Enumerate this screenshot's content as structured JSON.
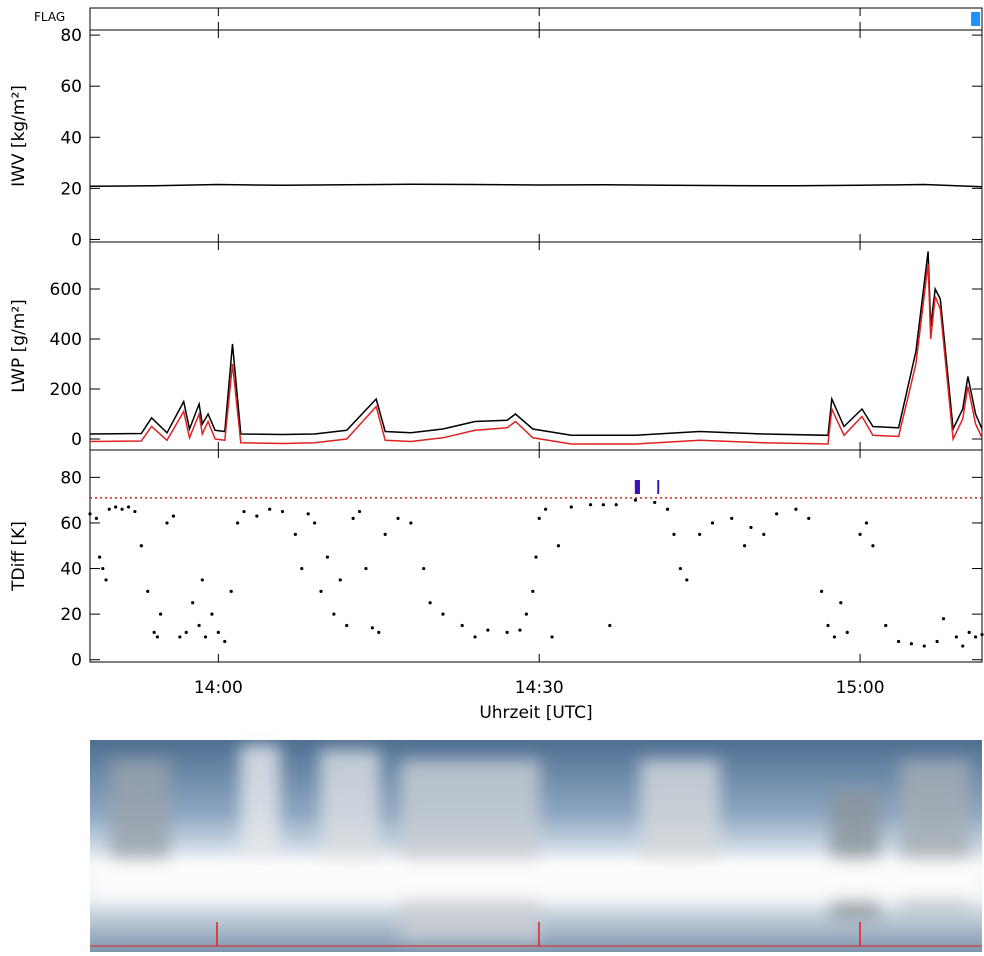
{
  "chart_data": [
    {
      "type": "flag",
      "label": "FLAG",
      "color": "#1e90ff",
      "xlim": [
        13.8,
        15.19
      ],
      "flags": [
        [
          15.173,
          15.187
        ]
      ]
    },
    {
      "type": "line",
      "ylabel": "IWV [kg/m²]",
      "xlim": [
        13.8,
        15.19
      ],
      "ylim": [
        -1,
        82
      ],
      "yticks": [
        0,
        20,
        40,
        60,
        80
      ],
      "x": [
        13.8,
        13.9,
        14.0,
        14.1,
        14.2,
        14.3,
        14.4,
        14.5,
        14.6,
        14.7,
        14.8,
        14.9,
        15.0,
        15.1,
        15.19
      ],
      "series": [
        {
          "color": "#000000",
          "values": [
            20.8,
            21.0,
            21.5,
            21.2,
            21.4,
            21.6,
            21.5,
            21.3,
            21.4,
            21.2,
            21.1,
            21.0,
            21.2,
            21.5,
            20.6
          ]
        }
      ]
    },
    {
      "type": "line",
      "ylabel": "LWP [g/m²]",
      "xlim": [
        13.8,
        15.19
      ],
      "ylim": [
        -44,
        788
      ],
      "yticks": [
        0,
        200,
        400,
        600
      ],
      "x": [
        13.8,
        13.88,
        13.896,
        13.92,
        13.946,
        13.955,
        13.97,
        13.975,
        13.984,
        13.995,
        14.01,
        14.022,
        14.035,
        14.1,
        14.15,
        14.2,
        14.246,
        14.26,
        14.3,
        14.35,
        14.4,
        14.45,
        14.463,
        14.49,
        14.55,
        14.65,
        14.75,
        14.85,
        14.95,
        14.956,
        14.975,
        15.003,
        15.02,
        15.06,
        15.087,
        15.106,
        15.11,
        15.117,
        15.125,
        15.135,
        15.145,
        15.16,
        15.168,
        15.18,
        15.19
      ],
      "series": [
        {
          "color": "#000000",
          "values": [
            20,
            22,
            85,
            25,
            150,
            40,
            140,
            60,
            100,
            35,
            30,
            380,
            20,
            18,
            20,
            35,
            160,
            30,
            25,
            40,
            70,
            75,
            100,
            40,
            15,
            15,
            30,
            20,
            15,
            160,
            50,
            120,
            50,
            45,
            350,
            750,
            450,
            600,
            560,
            300,
            40,
            120,
            250,
            100,
            40
          ]
        },
        {
          "color": "#dd2222",
          "values": [
            -10,
            -8,
            50,
            -5,
            110,
            5,
            100,
            20,
            70,
            0,
            -5,
            300,
            -15,
            -18,
            -15,
            0,
            130,
            -5,
            -10,
            5,
            35,
            45,
            70,
            5,
            -20,
            -20,
            -5,
            -15,
            -20,
            120,
            15,
            90,
            15,
            10,
            300,
            700,
            400,
            570,
            520,
            260,
            0,
            80,
            210,
            60,
            5
          ]
        }
      ]
    },
    {
      "type": "scatter",
      "ylabel": "TDiff [K]",
      "xlabel": "Uhrzeit [UTC]",
      "xlim": [
        13.8,
        15.19
      ],
      "ylim": [
        -1,
        92
      ],
      "yticks": [
        0,
        20,
        40,
        60,
        80
      ],
      "xticks": [
        {
          "value": 14.0,
          "label": "14:00"
        },
        {
          "value": 14.5,
          "label": "14:30"
        },
        {
          "value": 15.0,
          "label": "15:00"
        }
      ],
      "threshold": 71,
      "threshold_color": "#cc2222",
      "flag_color": "#3a12b8",
      "flags": [
        [
          14.649,
          14.657
        ],
        [
          14.684,
          14.687
        ]
      ],
      "color": "#000000",
      "x": [
        13.8,
        13.81,
        13.815,
        13.82,
        13.825,
        13.83,
        13.84,
        13.85,
        13.86,
        13.87,
        13.88,
        13.89,
        13.9,
        13.905,
        13.91,
        13.92,
        13.93,
        13.94,
        13.95,
        13.96,
        13.97,
        13.975,
        13.98,
        13.99,
        14.0,
        14.01,
        14.02,
        14.03,
        14.04,
        14.06,
        14.08,
        14.1,
        14.12,
        14.13,
        14.14,
        14.15,
        14.16,
        14.17,
        14.18,
        14.19,
        14.2,
        14.21,
        14.22,
        14.23,
        14.24,
        14.25,
        14.26,
        14.28,
        14.3,
        14.32,
        14.33,
        14.35,
        14.38,
        14.4,
        14.42,
        14.45,
        14.47,
        14.48,
        14.49,
        14.495,
        14.5,
        14.51,
        14.52,
        14.53,
        14.55,
        14.58,
        14.6,
        14.61,
        14.62,
        14.65,
        14.68,
        14.7,
        14.71,
        14.72,
        14.73,
        14.75,
        14.77,
        14.8,
        14.82,
        14.83,
        14.85,
        14.87,
        14.9,
        14.92,
        14.94,
        14.95,
        14.96,
        14.97,
        14.98,
        15.0,
        15.01,
        15.02,
        15.04,
        15.06,
        15.08,
        15.1,
        15.12,
        15.13,
        15.15,
        15.16,
        15.17,
        15.18,
        15.19
      ],
      "values": [
        64,
        62,
        45,
        40,
        35,
        66,
        67,
        66,
        67,
        65,
        50,
        30,
        12,
        10,
        20,
        60,
        63,
        10,
        12,
        25,
        15,
        35,
        10,
        20,
        12,
        8,
        30,
        60,
        65,
        63,
        66,
        65,
        55,
        40,
        64,
        60,
        30,
        45,
        20,
        35,
        15,
        62,
        65,
        40,
        14,
        12,
        55,
        62,
        60,
        40,
        25,
        20,
        15,
        10,
        13,
        12,
        13,
        20,
        30,
        45,
        62,
        66,
        10,
        50,
        67,
        68,
        68,
        15,
        68,
        70,
        69,
        66,
        55,
        40,
        35,
        55,
        60,
        62,
        50,
        58,
        55,
        64,
        66,
        62,
        30,
        15,
        10,
        25,
        12,
        55,
        60,
        50,
        15,
        8,
        7,
        6,
        8,
        18,
        10,
        6,
        12,
        10,
        11
      ]
    }
  ]
}
